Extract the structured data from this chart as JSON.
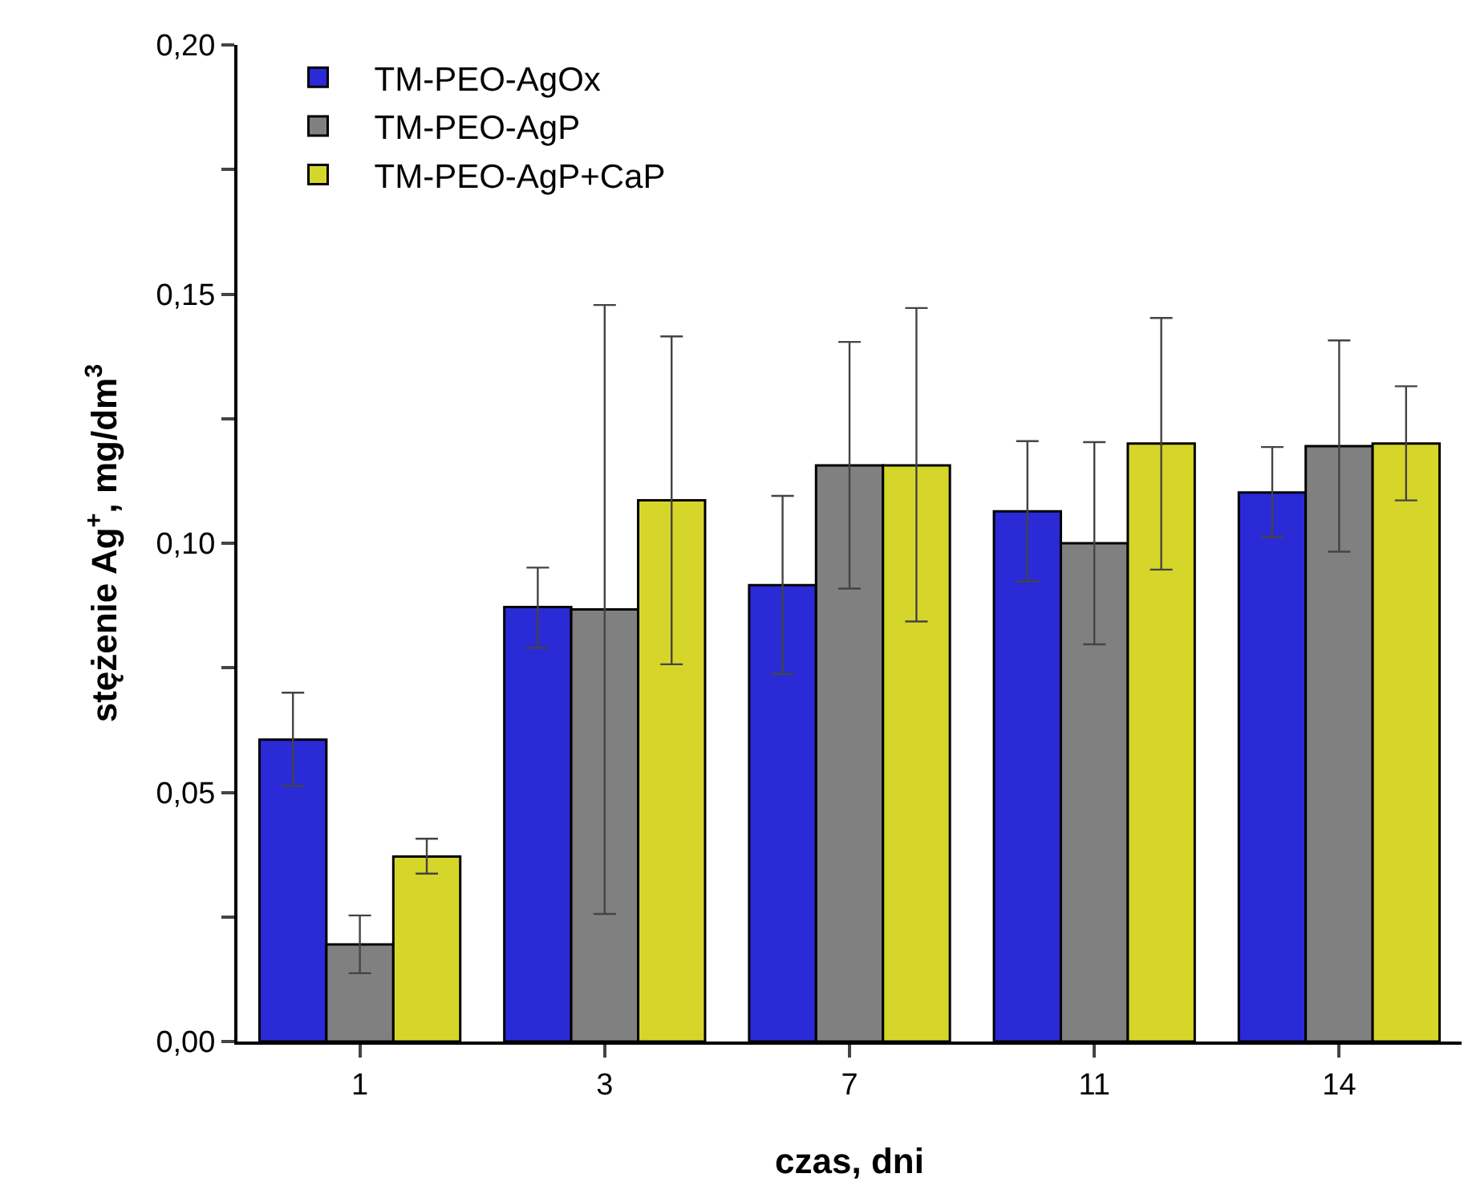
{
  "chart_data": {
    "type": "bar",
    "xlabel": "czas, dni",
    "ylabel": "stężenie Ag$^{+}$, mg/dm$^{3}$",
    "categories": [
      "1",
      "3",
      "7",
      "11",
      "14"
    ],
    "series": [
      {
        "name": "TM-PEO-AgOx",
        "color": "#2a2ad6",
        "values": [
          0.0606,
          0.0872,
          0.0916,
          0.1064,
          0.1102
        ],
        "errors": [
          [
            0.0513,
            0.07
          ],
          [
            0.079,
            0.0951
          ],
          [
            0.0738,
            0.1095
          ],
          [
            0.0923,
            0.1205
          ],
          [
            0.1012,
            0.1193
          ]
        ]
      },
      {
        "name": "TM-PEO-AgP",
        "color": "#808080",
        "values": [
          0.0195,
          0.0867,
          0.1156,
          0.1,
          0.1195
        ],
        "errors": [
          [
            0.0137,
            0.0253
          ],
          [
            0.0256,
            0.1478
          ],
          [
            0.0909,
            0.1404
          ],
          [
            0.0797,
            0.1203
          ],
          [
            0.0983,
            0.1407
          ]
        ]
      },
      {
        "name": "TM-PEO-AgP+CaP",
        "color": "#d6d62a",
        "values": [
          0.0371,
          0.1086,
          0.1156,
          0.12,
          0.12
        ],
        "errors": [
          [
            0.0337,
            0.0407
          ],
          [
            0.0757,
            0.1415
          ],
          [
            0.0843,
            0.1472
          ],
          [
            0.0947,
            0.1452
          ],
          [
            0.1086,
            0.1315
          ]
        ]
      }
    ],
    "ylim": [
      0,
      0.2
    ],
    "yticks": [
      {
        "value": 0,
        "label": "0,00"
      },
      {
        "value": 0.025,
        "label": null
      },
      {
        "value": 0.05,
        "label": "0,05"
      },
      {
        "value": 0.075,
        "label": null
      },
      {
        "value": 0.1,
        "label": "0,10"
      },
      {
        "value": 0.125,
        "label": null
      },
      {
        "value": 0.15,
        "label": "0,15"
      },
      {
        "value": 0.175,
        "label": null
      },
      {
        "value": 0.2,
        "label": "0,20"
      }
    ],
    "grid": false,
    "legend": "top left"
  }
}
